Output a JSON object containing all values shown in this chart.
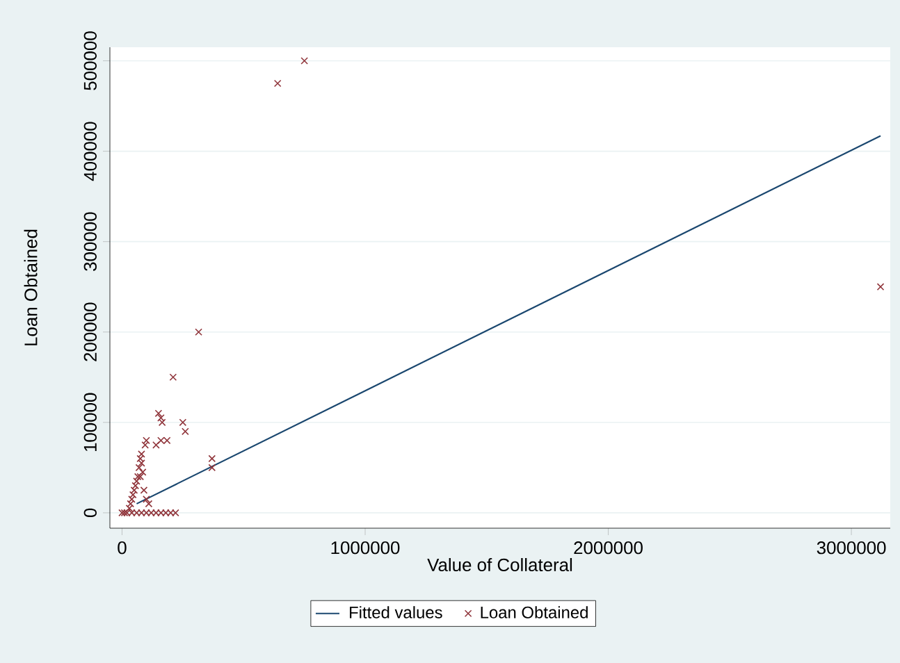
{
  "chart_data": {
    "type": "scatter",
    "xlabel": "Value of Collateral",
    "ylabel": "Loan Obtained",
    "xlim": [
      -50000,
      3160000
    ],
    "ylim": [
      -17000,
      515000
    ],
    "xticks": [
      0,
      1000000,
      2000000,
      3000000
    ],
    "yticks": [
      0,
      100000,
      200000,
      300000,
      400000,
      500000
    ],
    "grid": "y",
    "legend": "bottom",
    "series": [
      {
        "name": "Fitted values",
        "type": "line",
        "color": "#1a476f",
        "line_style": "solid",
        "x": [
          60000,
          3120000
        ],
        "values": [
          10000,
          417000
        ]
      },
      {
        "name": "Loan Obtained",
        "color": "#90353b",
        "marker": "cross",
        "x": [
          640000,
          750000,
          3120000,
          315000,
          210000,
          250000,
          260000,
          370000,
          370000,
          150000,
          160000,
          165000,
          160000,
          185000,
          140000,
          100000,
          95000,
          80000,
          75000,
          80000,
          70000,
          85000,
          75000,
          65000,
          60000,
          55000,
          50000,
          45000,
          40000,
          35000,
          30000,
          100000,
          110000,
          90000,
          0,
          10000,
          20000,
          40000,
          60000,
          80000,
          100000,
          120000,
          140000,
          160000,
          180000,
          200000,
          220000
        ],
        "values": [
          475000,
          500000,
          250000,
          200000,
          150000,
          100000,
          90000,
          60000,
          50000,
          110000,
          105000,
          100000,
          80000,
          80000,
          75000,
          80000,
          75000,
          65000,
          60000,
          55000,
          50000,
          45000,
          40000,
          40000,
          35000,
          30000,
          25000,
          20000,
          15000,
          10000,
          5000,
          15000,
          10000,
          25000,
          0,
          0,
          0,
          0,
          0,
          0,
          0,
          0,
          0,
          0,
          0,
          0,
          0
        ]
      }
    ]
  }
}
